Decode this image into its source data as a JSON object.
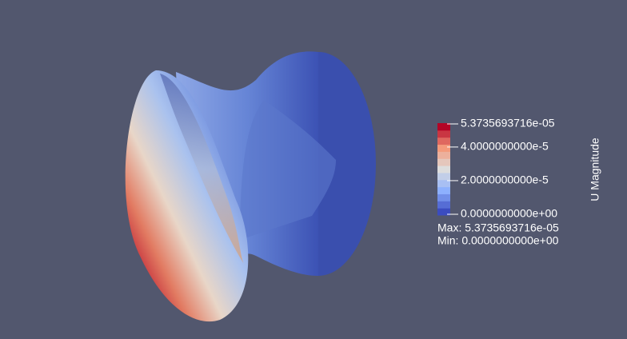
{
  "colorbar": {
    "title": "U Magnitude",
    "ticks": [
      {
        "value": 5.3735693716e-05,
        "label": "5.3735693716e-05"
      },
      {
        "value": 4e-05,
        "label": "4.0000000000e-5"
      },
      {
        "value": 2e-05,
        "label": "2.0000000000e-5"
      },
      {
        "value": 0,
        "label": "0.0000000000e+00"
      }
    ],
    "max_label": "Max: 5.3735693716e-05",
    "min_label": "Min: 0.0000000000e+00"
  }
}
